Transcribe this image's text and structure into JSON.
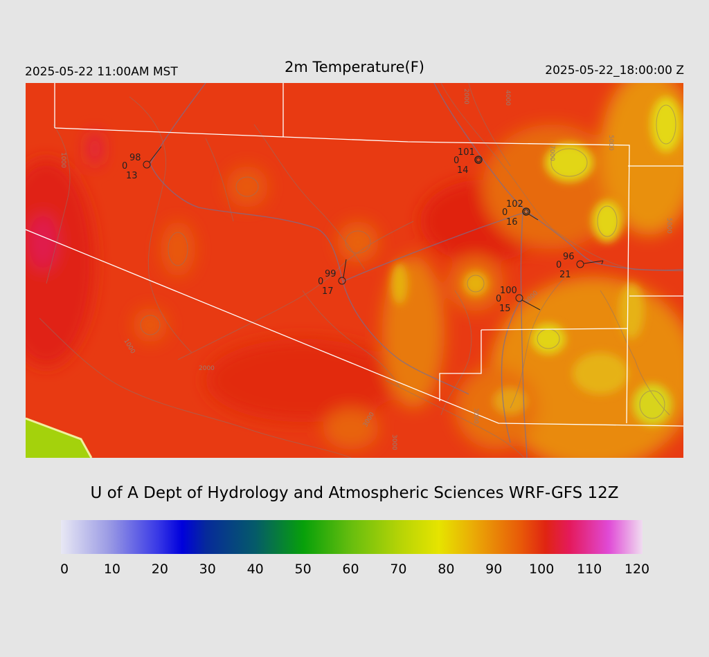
{
  "header": {
    "local_time": "2025-05-22 11:00AM MST",
    "title": "2m Temperature(F)",
    "valid_time": "2025-05-22_18:00:00 Z"
  },
  "credit": "U of A Dept of Hydrology and Atmospheric Sciences WRF-GFS 12Z",
  "colorbar": {
    "min": 0,
    "max": 120,
    "tick_labels": [
      "0",
      "10",
      "20",
      "30",
      "40",
      "50",
      "60",
      "70",
      "80",
      "90",
      "100",
      "110",
      "120"
    ],
    "tick_values": [
      0,
      10,
      20,
      30,
      40,
      50,
      60,
      70,
      80,
      90,
      100,
      110,
      120
    ],
    "stops": [
      {
        "value": 0,
        "color": "#e8e8f4"
      },
      {
        "value": 10,
        "color": "#9a9ae4"
      },
      {
        "value": 20,
        "color": "#3838e6"
      },
      {
        "value": 25,
        "color": "#0000dc"
      },
      {
        "value": 30,
        "color": "#062a9a"
      },
      {
        "value": 40,
        "color": "#055a6a"
      },
      {
        "value": 50,
        "color": "#07a00a"
      },
      {
        "value": 60,
        "color": "#68be0e"
      },
      {
        "value": 70,
        "color": "#b6d406"
      },
      {
        "value": 78,
        "color": "#e6e400"
      },
      {
        "value": 85,
        "color": "#eaac06"
      },
      {
        "value": 95,
        "color": "#e85808"
      },
      {
        "value": 100,
        "color": "#e02412"
      },
      {
        "value": 105,
        "color": "#e41a5c"
      },
      {
        "value": 113,
        "color": "#e04ad6"
      },
      {
        "value": 120,
        "color": "#f0dcf0"
      }
    ]
  },
  "map": {
    "contour_labels": [
      "1000",
      "1000",
      "2000",
      "2000",
      "3000",
      "3000",
      "4000",
      "5000",
      "5000",
      "7000",
      "4000",
      "3000"
    ],
    "stations": [
      {
        "temp": "98",
        "dew": "0",
        "id": "13"
      },
      {
        "temp": "101",
        "dew": "0",
        "id": "14"
      },
      {
        "temp": "102",
        "dew": "0",
        "id": "16"
      },
      {
        "temp": "99",
        "dew": "0",
        "id": "17"
      },
      {
        "temp": "96",
        "dew": "0",
        "id": "21"
      },
      {
        "temp": "100",
        "dew": "0",
        "id": "15"
      }
    ]
  }
}
